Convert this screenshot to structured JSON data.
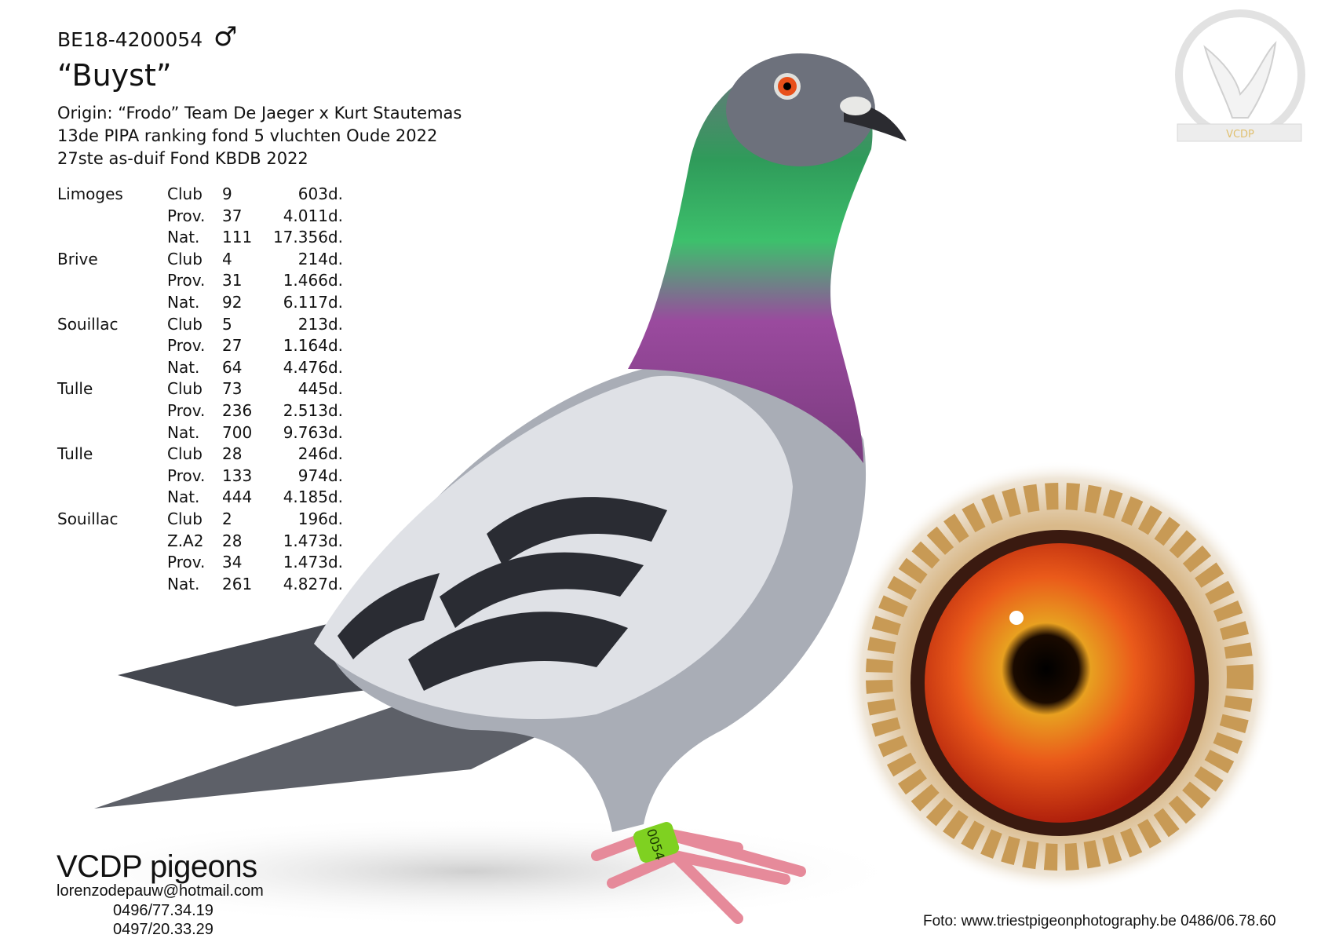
{
  "pigeon": {
    "ring_number": "BE18-4200054",
    "sex_icon": "male-symbol-icon",
    "sex_symbol": "♂",
    "name": "“Buyst”",
    "info_lines": [
      "Origin: “Frodo” Team De Jaeger x Kurt Stautemas",
      "13de PIPA ranking fond 5 vluchten Oude 2022",
      "27ste as-duif Fond KBDB 2022"
    ],
    "leg_ring_text": "0054"
  },
  "results": [
    {
      "race": "Limoges",
      "rows": [
        [
          "Club",
          "9",
          "603d."
        ],
        [
          "Prov.",
          "37",
          "4.011d."
        ],
        [
          "Nat.",
          "111",
          "17.356d."
        ]
      ]
    },
    {
      "race": "Brive",
      "rows": [
        [
          "Club",
          "4",
          "214d."
        ],
        [
          "Prov.",
          "31",
          "1.466d."
        ],
        [
          "Nat.",
          "92",
          "6.117d."
        ]
      ]
    },
    {
      "race": "Souillac",
      "rows": [
        [
          "Club",
          "5",
          "213d."
        ],
        [
          "Prov.",
          "27",
          "1.164d."
        ],
        [
          "Nat.",
          "64",
          "4.476d."
        ]
      ]
    },
    {
      "race": "Tulle",
      "rows": [
        [
          "Club",
          "73",
          "445d."
        ],
        [
          "Prov.",
          "236",
          "2.513d."
        ],
        [
          "Nat.",
          "700",
          "9.763d."
        ]
      ]
    },
    {
      "race": "Tulle",
      "rows": [
        [
          "Club",
          "28",
          "246d."
        ],
        [
          "Prov.",
          "133",
          "974d."
        ],
        [
          "Nat.",
          "444",
          "4.185d."
        ]
      ]
    },
    {
      "race": "Souillac",
      "rows": [
        [
          "Club",
          "2",
          "196d."
        ],
        [
          "Z.A2",
          "28",
          "1.473d."
        ],
        [
          "Prov.",
          "34",
          "1.473d."
        ],
        [
          "Nat.",
          "261",
          "4.827d."
        ]
      ]
    }
  ],
  "footer": {
    "brand": "VCDP pigeons",
    "email": "lorenzodepauw@hotmail.com",
    "phones": [
      "0496/77.34.19",
      "0497/20.33.29"
    ],
    "photo_credit": "Foto: www.triestpigeonphotography.be 0486/06.78.60"
  },
  "logo": {
    "text": "VCDP"
  },
  "colors": {
    "eye_iris": "#e8501a",
    "neck_green": "#3db36a",
    "neck_purple": "#9a4a9e",
    "ring_green": "#7fd121"
  }
}
